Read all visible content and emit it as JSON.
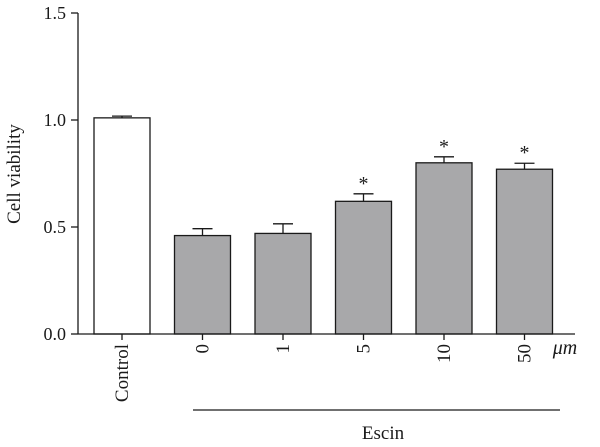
{
  "chart_data": {
    "type": "bar",
    "ylabel": "Cell viability",
    "ylim": [
      0,
      1.5
    ],
    "yticks": [
      "0.0",
      "0.5",
      "1.0",
      "1.5"
    ],
    "categories": [
      "Control",
      "0",
      "1",
      "5",
      "10",
      "50"
    ],
    "values": [
      1.01,
      0.46,
      0.47,
      0.62,
      0.8,
      0.77
    ],
    "errors": [
      0.008,
      0.032,
      0.045,
      0.035,
      0.028,
      0.028
    ],
    "significance": [
      "",
      "",
      "",
      "*",
      "*",
      "*"
    ],
    "bar_colors": [
      "#ffffff",
      "#a8a8aa",
      "#a8a8aa",
      "#a8a8aa",
      "#a8a8aa",
      "#a8a8aa"
    ],
    "unit_label": "μm",
    "group_label": "Escin",
    "grid": false
  }
}
